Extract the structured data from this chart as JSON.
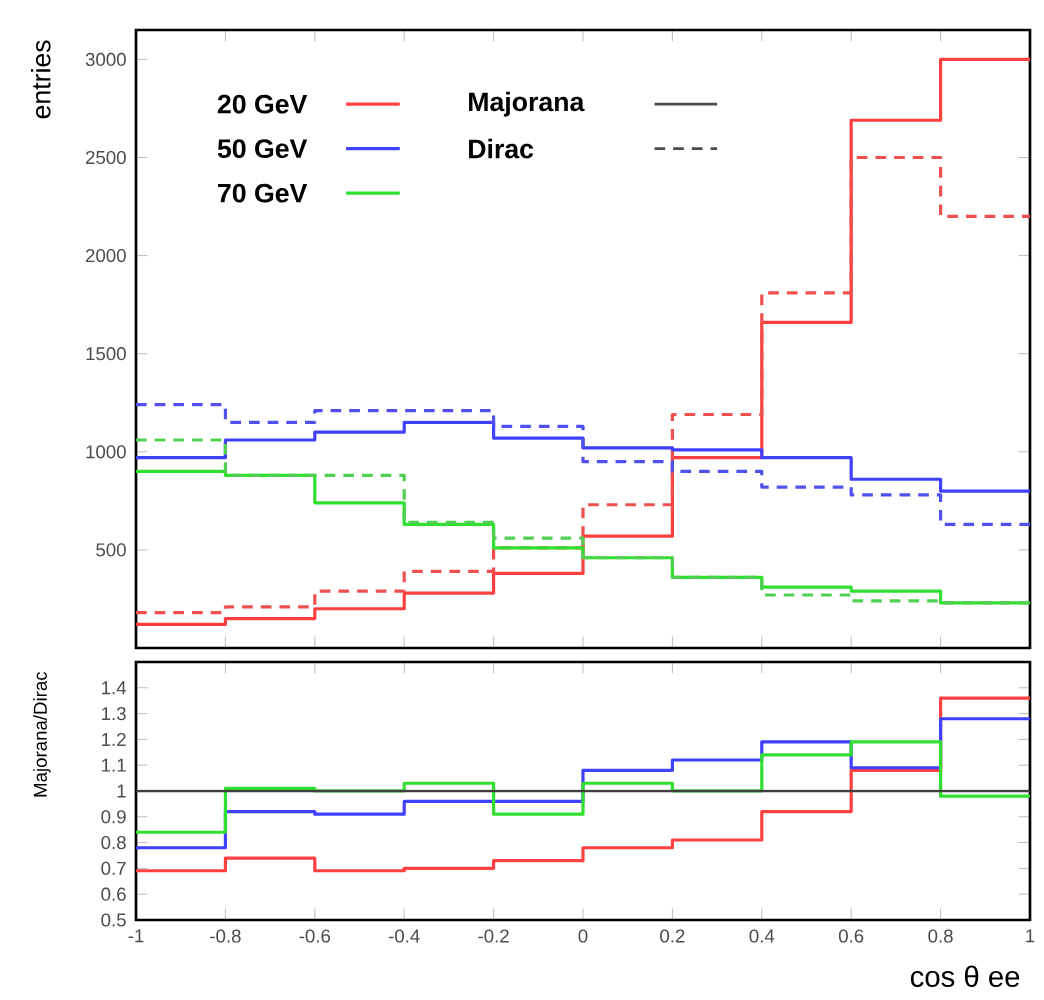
{
  "chart_data": [
    {
      "type": "histogram",
      "ylabel": "entries",
      "bins": [
        -1,
        -0.8,
        -0.6,
        -0.4,
        -0.2,
        0,
        0.2,
        0.4,
        0.6,
        0.8,
        1
      ],
      "xlim": [
        -1,
        1
      ],
      "ylim": [
        0,
        3150
      ],
      "xticks": [
        -1,
        -0.8,
        -0.6,
        -0.4,
        -0.2,
        0,
        0.2,
        0.4,
        0.6,
        0.8,
        1
      ],
      "yticks": [
        500,
        1000,
        1500,
        2000,
        2500,
        3000
      ],
      "tick_labels": "y",
      "legend": "top left",
      "annotations": [
        "Majorana",
        "Dirac"
      ],
      "series": [
        {
          "name": "20 GeV",
          "color": "#ff4040",
          "line_style": "solid",
          "values": [
            120,
            150,
            200,
            280,
            380,
            570,
            970,
            1660,
            2690,
            3000
          ]
        },
        {
          "color": "#ee5050",
          "line_style": "dashed",
          "values": [
            180,
            210,
            290,
            390,
            510,
            730,
            1190,
            1810,
            2500,
            2200
          ]
        },
        {
          "name": "50 GeV",
          "color": "#4040ff",
          "line_style": "solid",
          "values": [
            970,
            1060,
            1100,
            1150,
            1070,
            1020,
            1010,
            970,
            860,
            800
          ]
        },
        {
          "color": "#5050ee",
          "line_style": "dashed",
          "values": [
            1240,
            1150,
            1210,
            1210,
            1130,
            950,
            900,
            820,
            780,
            630
          ]
        },
        {
          "name": "70 GeV",
          "color": "#30e030",
          "line_style": "solid",
          "values": [
            900,
            880,
            740,
            630,
            510,
            460,
            360,
            310,
            290,
            230
          ]
        },
        {
          "color": "#50d050",
          "line_style": "dashed",
          "values": [
            1060,
            880,
            880,
            640,
            560,
            460,
            360,
            270,
            240,
            230
          ]
        }
      ]
    },
    {
      "type": "histogram",
      "ylabel": "Majorana/Dirac",
      "xlabel": "cos θ ee",
      "bins": [
        -1,
        -0.8,
        -0.6,
        -0.4,
        -0.2,
        0,
        0.2,
        0.4,
        0.6,
        0.8,
        1
      ],
      "xlim": [
        -1,
        1
      ],
      "ylim": [
        0.5,
        1.5
      ],
      "xticks": [
        -1,
        -0.8,
        -0.6,
        -0.4,
        -0.2,
        0,
        0.2,
        0.4,
        0.6,
        0.8,
        1
      ],
      "yticks": [
        0.5,
        0.6,
        0.7,
        0.8,
        0.9,
        1,
        1.1,
        1.2,
        1.3,
        1.4
      ],
      "ref_lines": [
        {
          "axis": "y",
          "value": 1,
          "color": "#404040"
        }
      ],
      "series": [
        {
          "color": "#ff4040",
          "values": [
            0.69,
            0.74,
            0.69,
            0.7,
            0.73,
            0.78,
            0.81,
            0.92,
            1.08,
            1.36
          ]
        },
        {
          "color": "#4040ff",
          "values": [
            0.78,
            0.92,
            0.91,
            0.96,
            0.96,
            1.08,
            1.12,
            1.19,
            1.09,
            1.28
          ]
        },
        {
          "color": "#30e030",
          "values": [
            0.84,
            1.01,
            1.0,
            1.03,
            0.91,
            1.03,
            1.0,
            1.14,
            1.19,
            0.98
          ]
        }
      ]
    }
  ]
}
